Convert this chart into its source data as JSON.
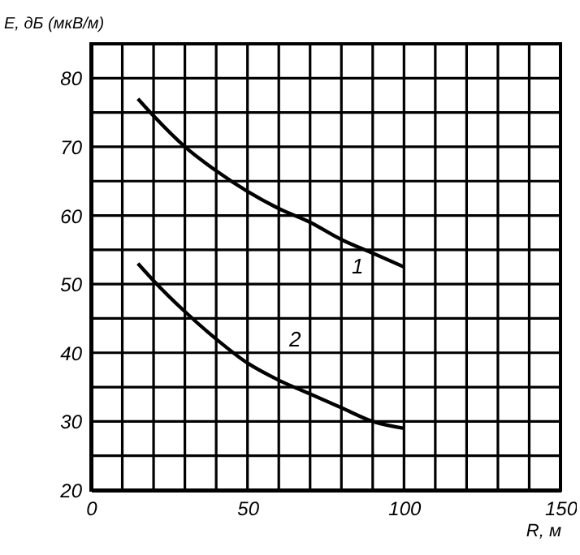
{
  "chart_data": {
    "type": "line",
    "xlabel": "R, м",
    "ylabel": "E, дБ (мкВ/м)",
    "x": [
      15,
      20,
      30,
      40,
      50,
      60,
      70,
      80,
      90,
      100
    ],
    "series": [
      {
        "name": "1",
        "color": "#000000",
        "values": [
          77,
          74.5,
          70,
          66.5,
          63.5,
          61,
          59,
          56.5,
          54.5,
          52.5
        ]
      },
      {
        "name": "2",
        "color": "#000000",
        "values": [
          53,
          50.5,
          46,
          42,
          38.5,
          36,
          34,
          32,
          30,
          29
        ]
      }
    ],
    "xlim": [
      0,
      150
    ],
    "xticks": [
      0,
      {
        "value": 10,
        "label": null
      },
      {
        "value": 20,
        "label": null
      },
      {
        "value": 30,
        "label": null
      },
      {
        "value": 40,
        "label": null
      },
      50,
      {
        "value": 60,
        "label": null
      },
      {
        "value": 70,
        "label": null
      },
      {
        "value": 80,
        "label": null
      },
      {
        "value": 90,
        "label": null
      },
      100,
      {
        "value": 110,
        "label": null
      },
      {
        "value": 120,
        "label": null
      },
      {
        "value": 130,
        "label": null
      },
      {
        "value": 140,
        "label": null
      },
      150
    ],
    "ylim": [
      20,
      85
    ],
    "yticks": [
      20,
      {
        "value": 25,
        "label": null
      },
      30,
      {
        "value": 35,
        "label": null
      },
      40,
      {
        "value": 45,
        "label": null
      },
      50,
      {
        "value": 55,
        "label": null
      },
      60,
      {
        "value": 65,
        "label": null
      },
      70,
      {
        "value": 75,
        "label": null
      },
      80,
      {
        "value": 85,
        "label": null
      }
    ],
    "grid": true,
    "line_style": "solid",
    "marker": "none"
  }
}
